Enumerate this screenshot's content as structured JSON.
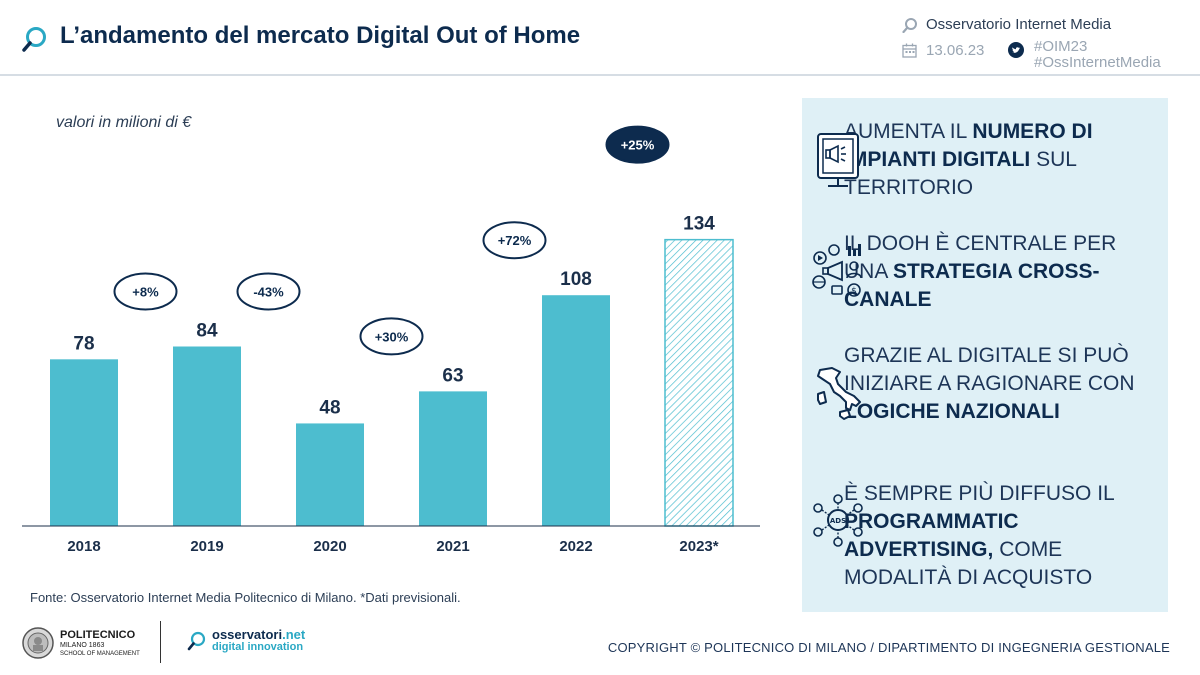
{
  "header": {
    "title": "L’andamento del mercato Digital Out of Home",
    "brand": "Osservatorio Internet Media",
    "date": "13.06.23",
    "hashtag_1": "#OIM23",
    "hashtag_2": "#OssInternetMedia"
  },
  "chart_data": {
    "type": "bar",
    "title": "L’andamento del mercato Digital Out of Home",
    "ylabel": "valori in milioni di €",
    "xlabel": "",
    "categories": [
      "2018",
      "2019",
      "2020",
      "2021",
      "2022",
      "2023*"
    ],
    "values": [
      78,
      84,
      48,
      63,
      108,
      134
    ],
    "forecast": [
      false,
      false,
      false,
      false,
      false,
      true
    ],
    "growth_labels": [
      "+8%",
      "-43%",
      "+30%",
      "+72%",
      "+25%"
    ],
    "growth_highlighted": [
      false,
      false,
      false,
      false,
      true
    ],
    "ylim": [
      0,
      170
    ],
    "grid": false,
    "colors": {
      "bar": "#4dbdcf",
      "forecast_bar": "#4dbdcf",
      "ellipse": "#0d2b4e",
      "label": "#1b2f4a"
    }
  },
  "panel": {
    "points": [
      {
        "icon": "digital-signage-icon",
        "html": "AUMENTA IL <b>NUMERO DI IMPIANTI DIGITALI</b> SUL TERRITORIO"
      },
      {
        "icon": "cross-channel-icon",
        "html": "IL DOOH È CENTRALE PER UNA <b>STRATEGIA CROSS-CANALE</b>"
      },
      {
        "icon": "italy-map-icon",
        "html": "GRAZIE AL DIGITALE SI PUÒ INIZIARE A RAGIONARE CON <b>LOGICHE NAZIONALI</b>"
      },
      {
        "icon": "programmatic-ads-icon",
        "html": "È SEMPRE PIÙ DIFFUSO IL <b>PROGRAMMATIC ADVERTISING,</b> COME MODALITÀ DI ACQUISTO"
      }
    ],
    "background": "#dff0f6"
  },
  "units_note": "valori in milioni di €",
  "source": "Fonte: Osservatorio Internet Media Politecnico di Milano. *Dati previsionali.",
  "footer": {
    "poli_name": "POLITECNICO",
    "poli_sub": "MILANO 1863",
    "poli_sub2": "SCHOOL OF MANAGEMENT",
    "osv_name": "osservatori",
    "osv_net": ".net",
    "osv_sub": "digital innovation",
    "copyright": "COPYRIGHT © POLITECNICO DI MILANO / DIPARTIMENTO DI INGEGNERIA GESTIONALE"
  }
}
